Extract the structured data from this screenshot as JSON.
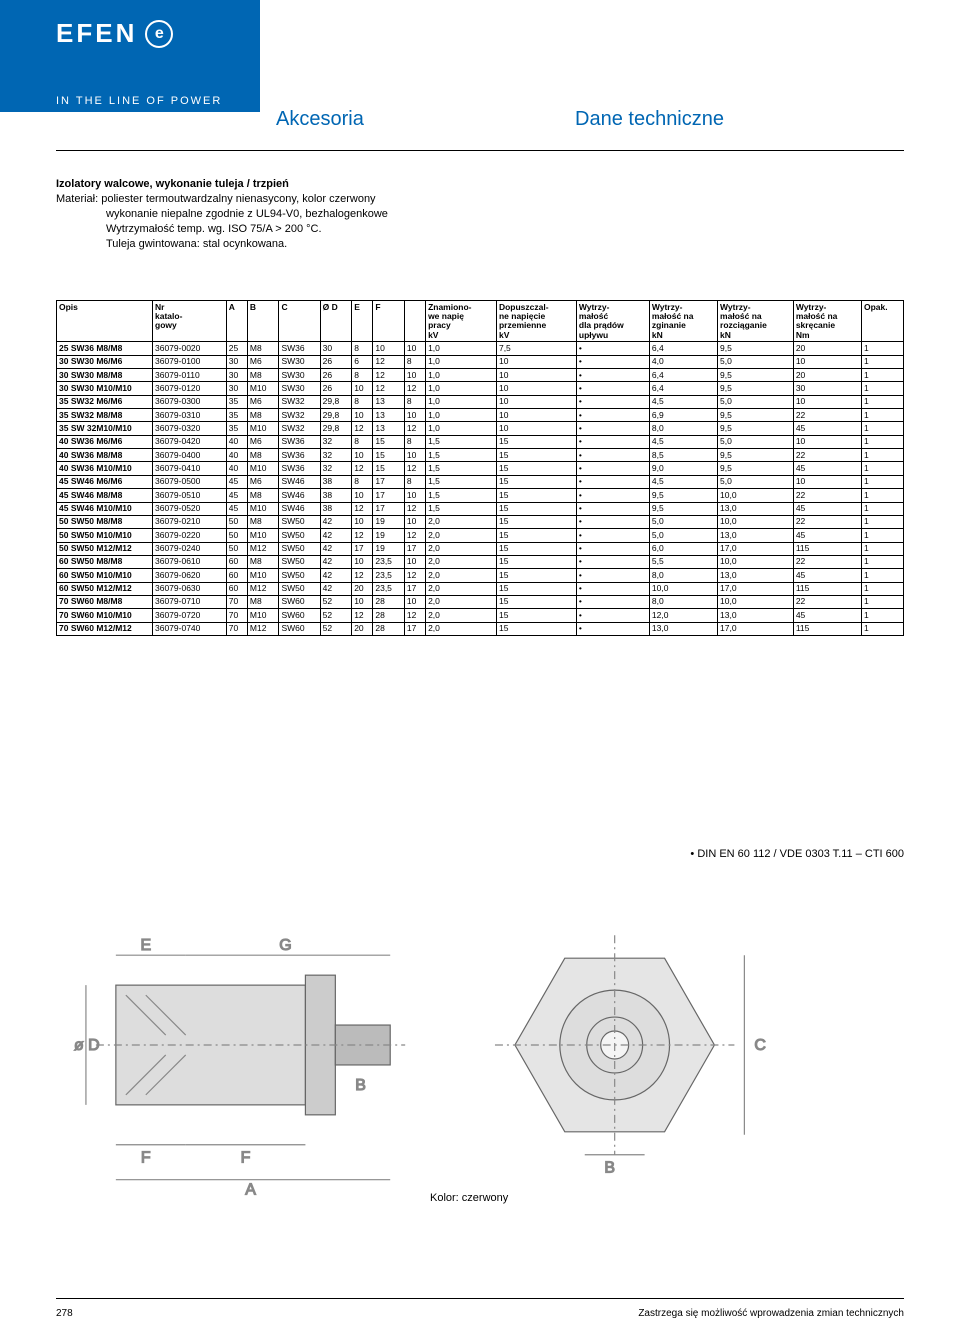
{
  "brand": {
    "logo_text": "EFEN",
    "logo_glyph": "e",
    "tagline": "IN THE LINE OF POWER"
  },
  "titles": {
    "left": "Akcesoria",
    "right": "Dane techniczne"
  },
  "section": {
    "title": "Izolatory walcowe, wykonanie tuleja / trzpień",
    "mat_label": "Materiał:",
    "mat_line1": "poliester termoutwardzalny nienasycony, kolor czerwony",
    "mat_line2": "wykonanie niepalne zgodnie z UL94-V0, bezhalogenkowe",
    "mat_line3": "Wytrzymałość temp. wg. ISO 75/A > 200 °C.",
    "mat_line4": "Tuleja gwintowana: stal ocynkowana."
  },
  "table": {
    "headers": [
      "Opis",
      "Nr katalo- gowy",
      "A",
      "B",
      "C",
      "Ø D",
      "E",
      "F",
      "",
      "Znamiono- we napię pracy kV",
      "Dopuszczal- ne napięcie przemienne kV",
      "Wytrzy- małość dla prądów upływu",
      "Wytrzy- małość na zginanie kN",
      "Wytrzy- małość na rozciąganie kN",
      "Wytrzy- małość na skręcanie Nm",
      "Opak."
    ],
    "rows": [
      [
        "25 SW36 M8/M8",
        "36079-0020",
        "25",
        "M8",
        "SW36",
        "30",
        "8",
        "10",
        "10",
        "1,0",
        "7,5",
        "•",
        "6,4",
        "9,5",
        "20",
        "1"
      ],
      [
        "30 SW30 M6/M6",
        "36079-0100",
        "30",
        "M6",
        "SW30",
        "26",
        "6",
        "12",
        "8",
        "1,0",
        "10",
        "•",
        "4,0",
        "5,0",
        "10",
        "1"
      ],
      [
        "30 SW30 M8/M8",
        "36079-0110",
        "30",
        "M8",
        "SW30",
        "26",
        "8",
        "12",
        "10",
        "1,0",
        "10",
        "•",
        "6,4",
        "9,5",
        "20",
        "1"
      ],
      [
        "30 SW30 M10/M10",
        "36079-0120",
        "30",
        "M10",
        "SW30",
        "26",
        "10",
        "12",
        "12",
        "1,0",
        "10",
        "•",
        "6,4",
        "9,5",
        "30",
        "1"
      ],
      [
        "35 SW32 M6/M6",
        "36079-0300",
        "35",
        "M6",
        "SW32",
        "29,8",
        "8",
        "13",
        "8",
        "1,0",
        "10",
        "•",
        "4,5",
        "5,0",
        "10",
        "1"
      ],
      [
        "35 SW32 M8/M8",
        "36079-0310",
        "35",
        "M8",
        "SW32",
        "29,8",
        "10",
        "13",
        "10",
        "1,0",
        "10",
        "•",
        "6,9",
        "9,5",
        "22",
        "1"
      ],
      [
        "35 SW 32M10/M10",
        "36079-0320",
        "35",
        "M10",
        "SW32",
        "29,8",
        "12",
        "13",
        "12",
        "1,0",
        "10",
        "•",
        "8,0",
        "9,5",
        "45",
        "1"
      ],
      [
        "40 SW36 M6/M6",
        "36079-0420",
        "40",
        "M6",
        "SW36",
        "32",
        "8",
        "15",
        "8",
        "1,5",
        "15",
        "•",
        "4,5",
        "5,0",
        "10",
        "1"
      ],
      [
        "40 SW36 M8/M8",
        "36079-0400",
        "40",
        "M8",
        "SW36",
        "32",
        "10",
        "15",
        "10",
        "1,5",
        "15",
        "•",
        "8,5",
        "9,5",
        "22",
        "1"
      ],
      [
        "40 SW36 M10/M10",
        "36079-0410",
        "40",
        "M10",
        "SW36",
        "32",
        "12",
        "15",
        "12",
        "1,5",
        "15",
        "•",
        "9,0",
        "9,5",
        "45",
        "1"
      ],
      [
        "45 SW46 M6/M6",
        "36079-0500",
        "45",
        "M6",
        "SW46",
        "38",
        "8",
        "17",
        "8",
        "1,5",
        "15",
        "•",
        "4,5",
        "5,0",
        "10",
        "1"
      ],
      [
        "45 SW46 M8/M8",
        "36079-0510",
        "45",
        "M8",
        "SW46",
        "38",
        "10",
        "17",
        "10",
        "1,5",
        "15",
        "•",
        "9,5",
        "10,0",
        "22",
        "1"
      ],
      [
        "45 SW46 M10/M10",
        "36079-0520",
        "45",
        "M10",
        "SW46",
        "38",
        "12",
        "17",
        "12",
        "1,5",
        "15",
        "•",
        "9,5",
        "13,0",
        "45",
        "1"
      ],
      [
        "50 SW50 M8/M8",
        "36079-0210",
        "50",
        "M8",
        "SW50",
        "42",
        "10",
        "19",
        "10",
        "2,0",
        "15",
        "•",
        "5,0",
        "10,0",
        "22",
        "1"
      ],
      [
        "50 SW50 M10/M10",
        "36079-0220",
        "50",
        "M10",
        "SW50",
        "42",
        "12",
        "19",
        "12",
        "2,0",
        "15",
        "•",
        "5,0",
        "13,0",
        "45",
        "1"
      ],
      [
        "50 SW50 M12/M12",
        "36079-0240",
        "50",
        "M12",
        "SW50",
        "42",
        "17",
        "19",
        "17",
        "2,0",
        "15",
        "•",
        "6,0",
        "17,0",
        "115",
        "1"
      ],
      [
        "60 SW50 M8/M8",
        "36079-0610",
        "60",
        "M8",
        "SW50",
        "42",
        "10",
        "23,5",
        "10",
        "2,0",
        "15",
        "•",
        "5,5",
        "10,0",
        "22",
        "1"
      ],
      [
        "60 SW50 M10/M10",
        "36079-0620",
        "60",
        "M10",
        "SW50",
        "42",
        "12",
        "23,5",
        "12",
        "2,0",
        "15",
        "•",
        "8,0",
        "13,0",
        "45",
        "1"
      ],
      [
        "60 SW50 M12/M12",
        "36079-0630",
        "60",
        "M12",
        "SW50",
        "42",
        "20",
        "23,5",
        "17",
        "2,0",
        "15",
        "•",
        "10,0",
        "17,0",
        "115",
        "1"
      ],
      [
        "70 SW60 M8/M8",
        "36079-0710",
        "70",
        "M8",
        "SW60",
        "52",
        "10",
        "28",
        "10",
        "2,0",
        "15",
        "•",
        "8,0",
        "10,0",
        "22",
        "1"
      ],
      [
        "70 SW60 M10/M10",
        "36079-0720",
        "70",
        "M10",
        "SW60",
        "52",
        "12",
        "28",
        "12",
        "2,0",
        "15",
        "•",
        "12,0",
        "13,0",
        "45",
        "1"
      ],
      [
        "70 SW60 M12/M12",
        "36079-0740",
        "70",
        "M12",
        "SW60",
        "52",
        "20",
        "28",
        "17",
        "2,0",
        "15",
        "•",
        "13,0",
        "17,0",
        "115",
        "1"
      ]
    ]
  },
  "note": "• DIN EN 60 112 / VDE 0303 T.11 – CTI 600",
  "color_label": "Kolor: czerwony",
  "footer": {
    "page": "278",
    "text": "Zastrzega się możliwość wprowadzenia zmian technicznych"
  },
  "colors": {
    "brand_blue": "#0066b3"
  }
}
